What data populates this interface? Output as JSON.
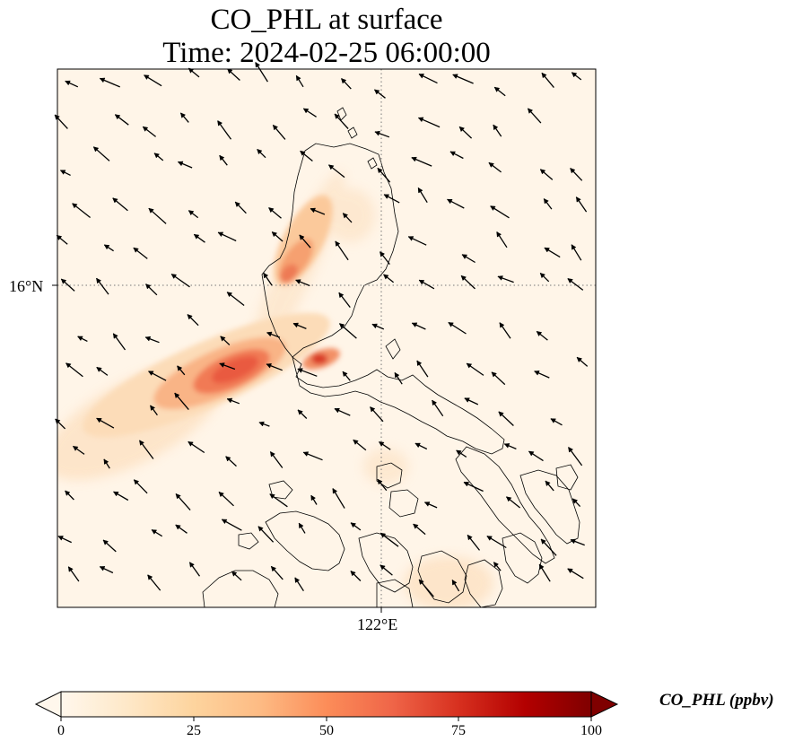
{
  "title_line1": "CO_PHL at surface",
  "title_line2": "Time: 2024-02-25 06:00:00",
  "map": {
    "lat_label": "16°N",
    "lon_label": "122°E",
    "gridlines": "dotted"
  },
  "colorbar": {
    "label": "CO_PHL (ppbv)",
    "ticks": [
      "0",
      "25",
      "50",
      "75",
      "100"
    ],
    "colormap": "OrRd",
    "colors": [
      "#fff7ec",
      "#fdd49e",
      "#fc8d59",
      "#d7301f",
      "#7f0000"
    ],
    "extend": "both"
  }
}
